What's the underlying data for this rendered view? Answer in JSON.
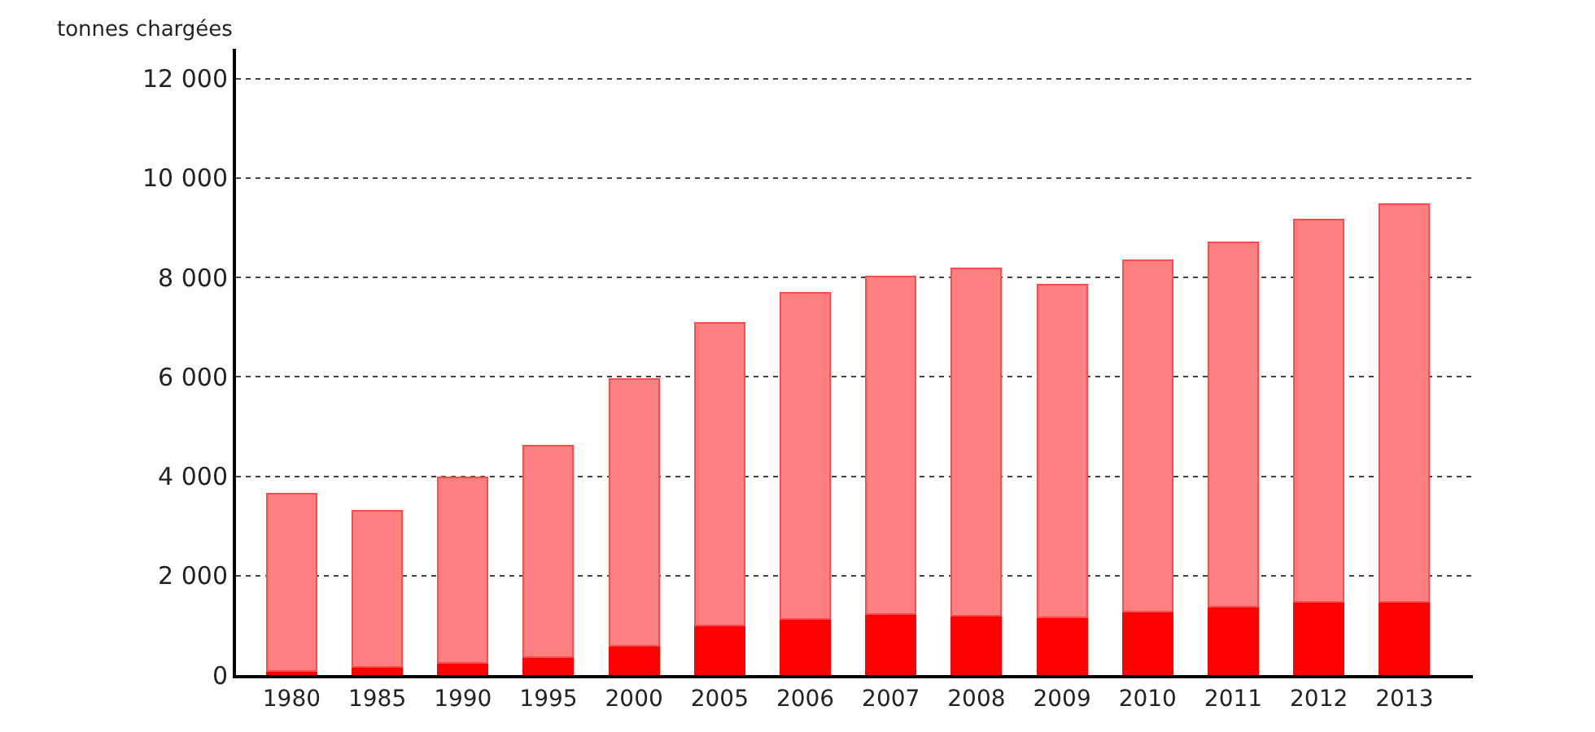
{
  "chart_data": {
    "type": "bar",
    "ylabel": "tonnes chargées",
    "stacked": true,
    "categories": [
      "1980",
      "1985",
      "1990",
      "1995",
      "2000",
      "2005",
      "2006",
      "2007",
      "2008",
      "2009",
      "2010",
      "2011",
      "2012",
      "2013"
    ],
    "series": [
      {
        "color": "#ff0000",
        "values": [
          80,
          160,
          240,
          360,
          590,
          1000,
          1130,
          1230,
          1200,
          1170,
          1280,
          1370,
          1470,
          1480
        ]
      },
      {
        "color": "#ff8080",
        "values": [
          3570,
          3140,
          3730,
          4250,
          5360,
          6080,
          6560,
          6790,
          6980,
          6690,
          7070,
          7340,
          7700,
          8000
        ]
      }
    ],
    "ylim": [
      0,
      12600
    ],
    "yticks": [
      {
        "value": 0,
        "label": "0"
      },
      {
        "value": 2000,
        "label": "2 000"
      },
      {
        "value": 4000,
        "label": "4 000"
      },
      {
        "value": 6000,
        "label": "6 000"
      },
      {
        "value": 8000,
        "label": "8 000"
      },
      {
        "value": 10000,
        "label": "10 000"
      },
      {
        "value": 12000,
        "label": "12 000"
      }
    ],
    "grid": "y"
  }
}
